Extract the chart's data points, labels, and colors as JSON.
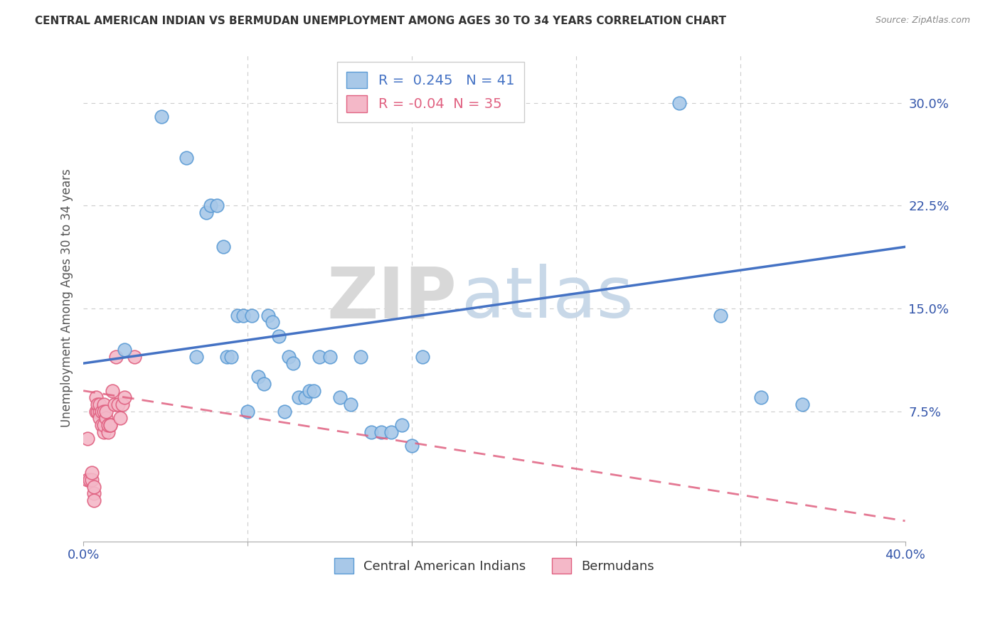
{
  "title": "CENTRAL AMERICAN INDIAN VS BERMUDAN UNEMPLOYMENT AMONG AGES 30 TO 34 YEARS CORRELATION CHART",
  "source": "Source: ZipAtlas.com",
  "ylabel": "Unemployment Among Ages 30 to 34 years",
  "r_blue": 0.245,
  "n_blue": 41,
  "r_pink": -0.04,
  "n_pink": 35,
  "legend_blue": "Central American Indians",
  "legend_pink": "Bermudans",
  "xlim": [
    0.0,
    0.4
  ],
  "ylim": [
    -0.02,
    0.335
  ],
  "watermark_zip": "ZIP",
  "watermark_atlas": "atlas",
  "blue_color": "#a8c8e8",
  "blue_edge_color": "#5b9bd5",
  "pink_color": "#f4b8c8",
  "pink_edge_color": "#e06080",
  "blue_line_color": "#4472c4",
  "pink_line_color": "#e06080",
  "blue_scatter_x": [
    0.02,
    0.038,
    0.05,
    0.055,
    0.06,
    0.062,
    0.065,
    0.068,
    0.07,
    0.072,
    0.075,
    0.078,
    0.08,
    0.082,
    0.085,
    0.088,
    0.09,
    0.092,
    0.095,
    0.098,
    0.1,
    0.102,
    0.105,
    0.108,
    0.11,
    0.112,
    0.115,
    0.12,
    0.125,
    0.13,
    0.135,
    0.14,
    0.145,
    0.15,
    0.155,
    0.16,
    0.165,
    0.29,
    0.31,
    0.33,
    0.35
  ],
  "blue_scatter_y": [
    0.12,
    0.29,
    0.26,
    0.115,
    0.22,
    0.225,
    0.225,
    0.195,
    0.115,
    0.115,
    0.145,
    0.145,
    0.075,
    0.145,
    0.1,
    0.095,
    0.145,
    0.14,
    0.13,
    0.075,
    0.115,
    0.11,
    0.085,
    0.085,
    0.09,
    0.09,
    0.115,
    0.115,
    0.085,
    0.08,
    0.115,
    0.06,
    0.06,
    0.06,
    0.065,
    0.05,
    0.115,
    0.3,
    0.145,
    0.085,
    0.08
  ],
  "pink_scatter_x": [
    0.002,
    0.002,
    0.003,
    0.004,
    0.004,
    0.005,
    0.005,
    0.005,
    0.006,
    0.006,
    0.007,
    0.007,
    0.008,
    0.008,
    0.008,
    0.009,
    0.009,
    0.01,
    0.01,
    0.01,
    0.01,
    0.011,
    0.011,
    0.012,
    0.012,
    0.013,
    0.013,
    0.014,
    0.015,
    0.016,
    0.017,
    0.018,
    0.019,
    0.02,
    0.025
  ],
  "pink_scatter_y": [
    0.055,
    0.025,
    0.025,
    0.025,
    0.03,
    0.015,
    0.02,
    0.01,
    0.075,
    0.085,
    0.075,
    0.08,
    0.075,
    0.07,
    0.08,
    0.075,
    0.065,
    0.08,
    0.075,
    0.06,
    0.065,
    0.07,
    0.075,
    0.06,
    0.065,
    0.065,
    0.065,
    0.09,
    0.08,
    0.115,
    0.08,
    0.07,
    0.08,
    0.085,
    0.115
  ],
  "blue_trend_x0": 0.0,
  "blue_trend_y0": 0.11,
  "blue_trend_x1": 0.4,
  "blue_trend_y1": 0.195,
  "pink_trend_x0": 0.0,
  "pink_trend_y0": 0.09,
  "pink_trend_x1": 0.4,
  "pink_trend_y1": -0.005
}
